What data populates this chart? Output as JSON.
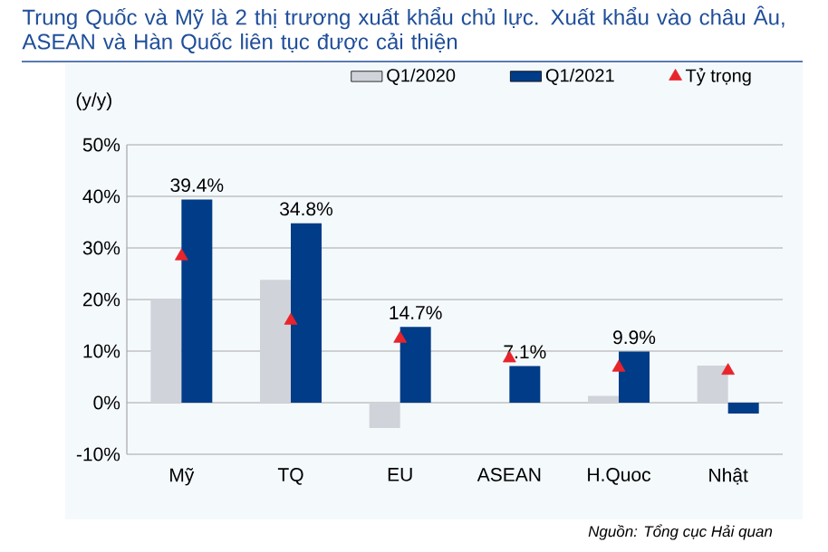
{
  "chart_data": {
    "type": "bar",
    "title": "Trung Quốc và Mỹ là 2 thị trương xuất khẩu chủ lực. Xuất khẩu vào châu Âu, ASEAN và Hàn Quốc liên tục được cải thiện",
    "ylabel": "(y/y)",
    "categories": [
      "Mỹ",
      "TQ",
      "EU",
      "ASEAN",
      "H.Quoc",
      "Nhật"
    ],
    "series": [
      {
        "name": "Q1/2020",
        "color": "#d0d4da",
        "values": [
          20.1,
          23.8,
          -4.9,
          0,
          1.3,
          7.2
        ]
      },
      {
        "name": "Q1/2021",
        "color": "#003c88",
        "values": [
          39.4,
          34.8,
          14.7,
          7.1,
          9.9,
          -2.1
        ],
        "value_labels": [
          "39.4%",
          "34.8%",
          "14.7%",
          "7.1%",
          "9.9%",
          null
        ]
      },
      {
        "name": "Tỷ trọng",
        "type": "scatter",
        "color": "#e8242c",
        "marker": "triangle",
        "values": [
          28.4,
          15.9,
          12.4,
          8.6,
          6.8,
          6.2
        ]
      }
    ],
    "ylim": [
      -10,
      50
    ],
    "yticks": [
      {
        "value": -10,
        "label": "-10%"
      },
      {
        "value": 0,
        "label": "0%"
      },
      {
        "value": 10,
        "label": "10%"
      },
      {
        "value": 20,
        "label": "20%"
      },
      {
        "value": 30,
        "label": "30%"
      },
      {
        "value": 40,
        "label": "40%"
      },
      {
        "value": 50,
        "label": "50%"
      }
    ],
    "grid": "y",
    "legend": "top",
    "annotations": [
      "Nguồn: Tổng cục Hải quan"
    ]
  }
}
